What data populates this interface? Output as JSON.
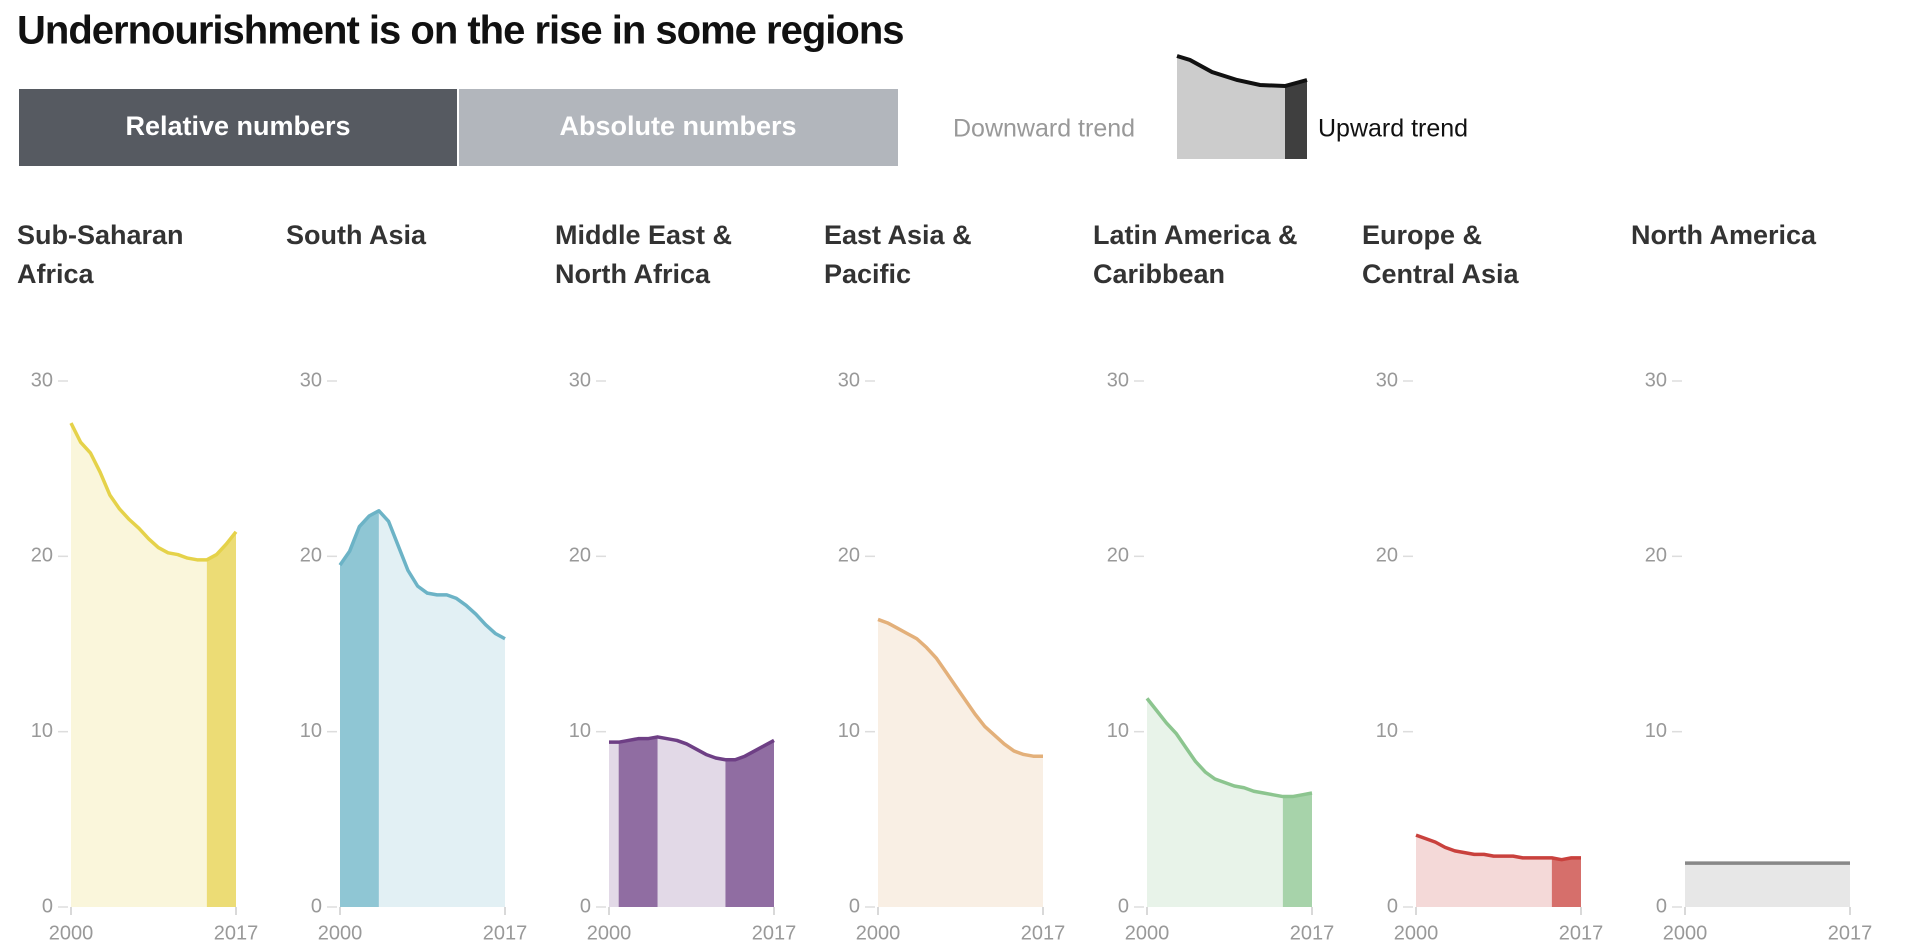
{
  "title": "Undernourishment is on the rise in some regions",
  "buttons": [
    "Relative numbers",
    "Absolute numbers"
  ],
  "legend": {
    "down": "Downward trend",
    "up": "Upward trend"
  },
  "chart_data": [
    {
      "type": "area",
      "title": [
        "Sub-Saharan",
        "Africa"
      ],
      "color": "#e5d24a",
      "x": [
        2000,
        2001,
        2002,
        2003,
        2004,
        2005,
        2006,
        2007,
        2008,
        2009,
        2010,
        2011,
        2012,
        2013,
        2014,
        2015,
        2016,
        2017
      ],
      "values": [
        27.6,
        26.5,
        25.9,
        24.8,
        23.5,
        22.7,
        22.1,
        21.6,
        21.0,
        20.5,
        20.2,
        20.1,
        19.9,
        19.8,
        19.8,
        20.1,
        20.7,
        21.4
      ],
      "upward_ranges": [
        [
          2014,
          2017
        ]
      ],
      "xlim": [
        2000,
        2017
      ],
      "xticks": [
        2000,
        2017
      ],
      "ylim": [
        0,
        30
      ],
      "yticks": [
        0,
        10,
        20,
        30
      ]
    },
    {
      "type": "area",
      "title": [
        "South Asia"
      ],
      "color": "#6cb3c6",
      "x": [
        2000,
        2001,
        2002,
        2003,
        2004,
        2005,
        2006,
        2007,
        2008,
        2009,
        2010,
        2011,
        2012,
        2013,
        2014,
        2015,
        2016,
        2017
      ],
      "values": [
        19.5,
        20.3,
        21.7,
        22.3,
        22.6,
        22.0,
        20.6,
        19.2,
        18.3,
        17.9,
        17.8,
        17.8,
        17.6,
        17.2,
        16.7,
        16.1,
        15.6,
        15.3
      ],
      "upward_ranges": [
        [
          2000,
          2004
        ]
      ],
      "xlim": [
        2000,
        2017
      ],
      "xticks": [
        2000,
        2017
      ],
      "ylim": [
        0,
        30
      ],
      "yticks": [
        0,
        10,
        20,
        30
      ]
    },
    {
      "type": "area",
      "title": [
        "Middle East &",
        "North Africa"
      ],
      "color": "#6e3f85",
      "x": [
        2000,
        2001,
        2002,
        2003,
        2004,
        2005,
        2006,
        2007,
        2008,
        2009,
        2010,
        2011,
        2012,
        2013,
        2014,
        2015,
        2016,
        2017
      ],
      "values": [
        9.4,
        9.4,
        9.5,
        9.6,
        9.6,
        9.7,
        9.6,
        9.5,
        9.3,
        9.0,
        8.7,
        8.5,
        8.4,
        8.4,
        8.6,
        8.9,
        9.2,
        9.5
      ],
      "upward_ranges": [
        [
          2001,
          2005
        ],
        [
          2012,
          2017
        ]
      ],
      "xlim": [
        2000,
        2017
      ],
      "xticks": [
        2000,
        2017
      ],
      "ylim": [
        0,
        30
      ],
      "yticks": [
        0,
        10,
        20,
        30
      ]
    },
    {
      "type": "area",
      "title": [
        "East Asia &",
        "Pacific"
      ],
      "color": "#e3b07a",
      "x": [
        2000,
        2001,
        2002,
        2003,
        2004,
        2005,
        2006,
        2007,
        2008,
        2009,
        2010,
        2011,
        2012,
        2013,
        2014,
        2015,
        2016,
        2017
      ],
      "values": [
        16.4,
        16.2,
        15.9,
        15.6,
        15.3,
        14.8,
        14.2,
        13.4,
        12.6,
        11.8,
        11.0,
        10.3,
        9.8,
        9.3,
        8.9,
        8.7,
        8.6,
        8.6
      ],
      "upward_ranges": [],
      "xlim": [
        2000,
        2017
      ],
      "xticks": [
        2000,
        2017
      ],
      "ylim": [
        0,
        30
      ],
      "yticks": [
        0,
        10,
        20,
        30
      ]
    },
    {
      "type": "area",
      "title": [
        "Latin America &",
        "Caribbean"
      ],
      "color": "#8cc58f",
      "x": [
        2000,
        2001,
        2002,
        2003,
        2004,
        2005,
        2006,
        2007,
        2008,
        2009,
        2010,
        2011,
        2012,
        2013,
        2014,
        2015,
        2016,
        2017
      ],
      "values": [
        11.9,
        11.2,
        10.5,
        9.9,
        9.1,
        8.3,
        7.7,
        7.3,
        7.1,
        6.9,
        6.8,
        6.6,
        6.5,
        6.4,
        6.3,
        6.3,
        6.4,
        6.5
      ],
      "upward_ranges": [
        [
          2014,
          2017
        ]
      ],
      "xlim": [
        2000,
        2017
      ],
      "xticks": [
        2000,
        2017
      ],
      "ylim": [
        0,
        30
      ],
      "yticks": [
        0,
        10,
        20,
        30
      ]
    },
    {
      "type": "area",
      "title": [
        "Europe &",
        "Central Asia"
      ],
      "color": "#c9413d",
      "x": [
        2000,
        2001,
        2002,
        2003,
        2004,
        2005,
        2006,
        2007,
        2008,
        2009,
        2010,
        2011,
        2012,
        2013,
        2014,
        2015,
        2016,
        2017
      ],
      "values": [
        4.1,
        3.9,
        3.7,
        3.4,
        3.2,
        3.1,
        3.0,
        3.0,
        2.9,
        2.9,
        2.9,
        2.8,
        2.8,
        2.8,
        2.8,
        2.7,
        2.8,
        2.8
      ],
      "upward_ranges": [
        [
          2014,
          2017
        ]
      ],
      "xlim": [
        2000,
        2017
      ],
      "xticks": [
        2000,
        2017
      ],
      "ylim": [
        0,
        30
      ],
      "yticks": [
        0,
        10,
        20,
        30
      ]
    },
    {
      "type": "area",
      "title": [
        "North America"
      ],
      "color": "#888888",
      "x": [
        2000,
        2001,
        2002,
        2003,
        2004,
        2005,
        2006,
        2007,
        2008,
        2009,
        2010,
        2011,
        2012,
        2013,
        2014,
        2015,
        2016,
        2017
      ],
      "values": [
        2.5,
        2.5,
        2.5,
        2.5,
        2.5,
        2.5,
        2.5,
        2.5,
        2.5,
        2.5,
        2.5,
        2.5,
        2.5,
        2.5,
        2.5,
        2.5,
        2.5,
        2.5
      ],
      "upward_ranges": [],
      "xlim": [
        2000,
        2017
      ],
      "xticks": [
        2000,
        2017
      ],
      "ylim": [
        0,
        30
      ],
      "yticks": [
        0,
        10,
        20,
        30
      ]
    }
  ]
}
